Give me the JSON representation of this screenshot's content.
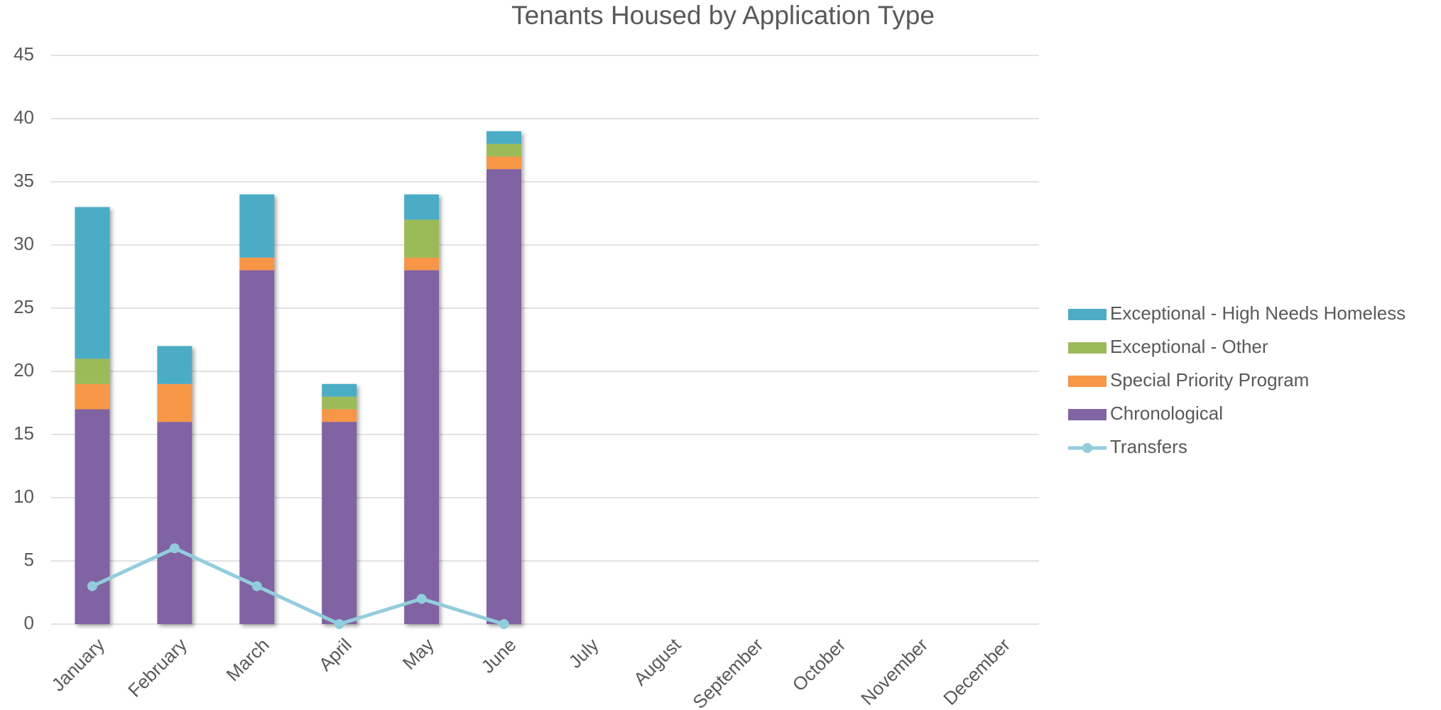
{
  "chart_data": {
    "type": "bar",
    "stacked": true,
    "title": "Tenants Housed by Application Type",
    "categories": [
      "January",
      "February",
      "March",
      "April",
      "May",
      "June",
      "July",
      "August",
      "September",
      "October",
      "November",
      "December"
    ],
    "series": [
      {
        "name": "Chronological",
        "color": "#8064a2",
        "values": [
          17,
          16,
          28,
          16,
          28,
          36,
          null,
          null,
          null,
          null,
          null,
          null
        ]
      },
      {
        "name": "Special Priority Program",
        "color": "#f79646",
        "values": [
          2,
          3,
          1,
          1,
          1,
          1,
          null,
          null,
          null,
          null,
          null,
          null
        ]
      },
      {
        "name": "Exceptional - Other",
        "color": "#9bbb59",
        "values": [
          2,
          0,
          0,
          1,
          3,
          1,
          null,
          null,
          null,
          null,
          null,
          null
        ]
      },
      {
        "name": "Exceptional - High Needs Homeless",
        "color": "#4bacc6",
        "values": [
          12,
          3,
          5,
          1,
          2,
          1,
          null,
          null,
          null,
          null,
          null,
          null
        ]
      },
      {
        "name": "Transfers",
        "type": "line",
        "color": "#92cddc",
        "values": [
          3,
          6,
          3,
          0,
          2,
          0,
          null,
          null,
          null,
          null,
          null,
          null
        ]
      }
    ],
    "ylim": [
      0,
      45
    ],
    "yticks": [
      0,
      5,
      10,
      15,
      20,
      25,
      30,
      35,
      40,
      45
    ],
    "grid": true,
    "legend": "right"
  }
}
